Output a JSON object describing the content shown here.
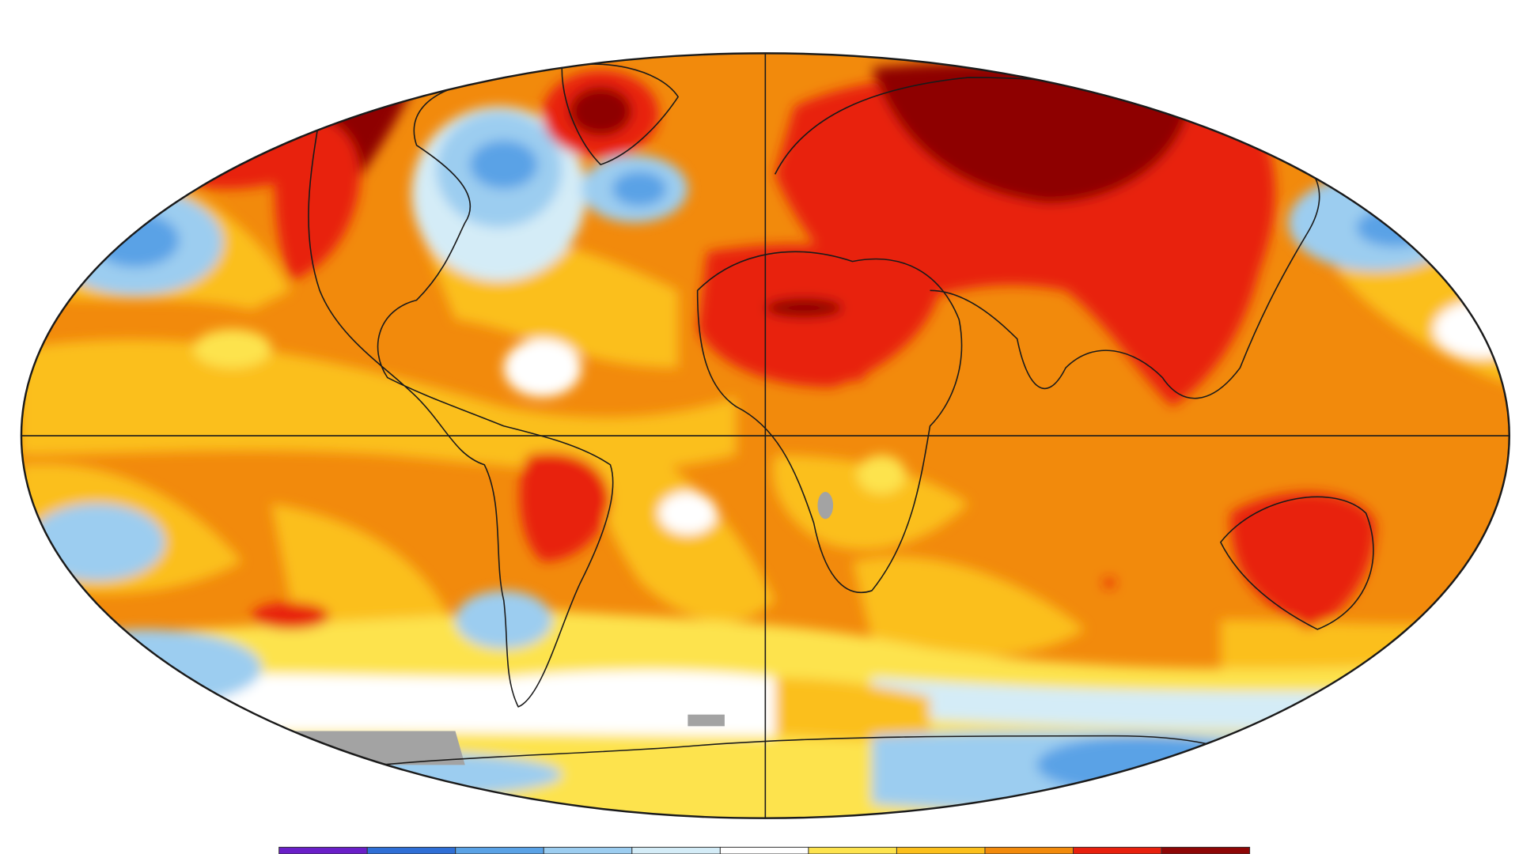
{
  "color_scale": {
    "colors": [
      "#6a1fc8",
      "#2f6fd6",
      "#5aa2e6",
      "#9ccdf0",
      "#d4ecf7",
      "#ffffff",
      "#fde34e",
      "#fbbf1c",
      "#f28a0c",
      "#e8200e",
      "#8e0606"
    ]
  }
}
